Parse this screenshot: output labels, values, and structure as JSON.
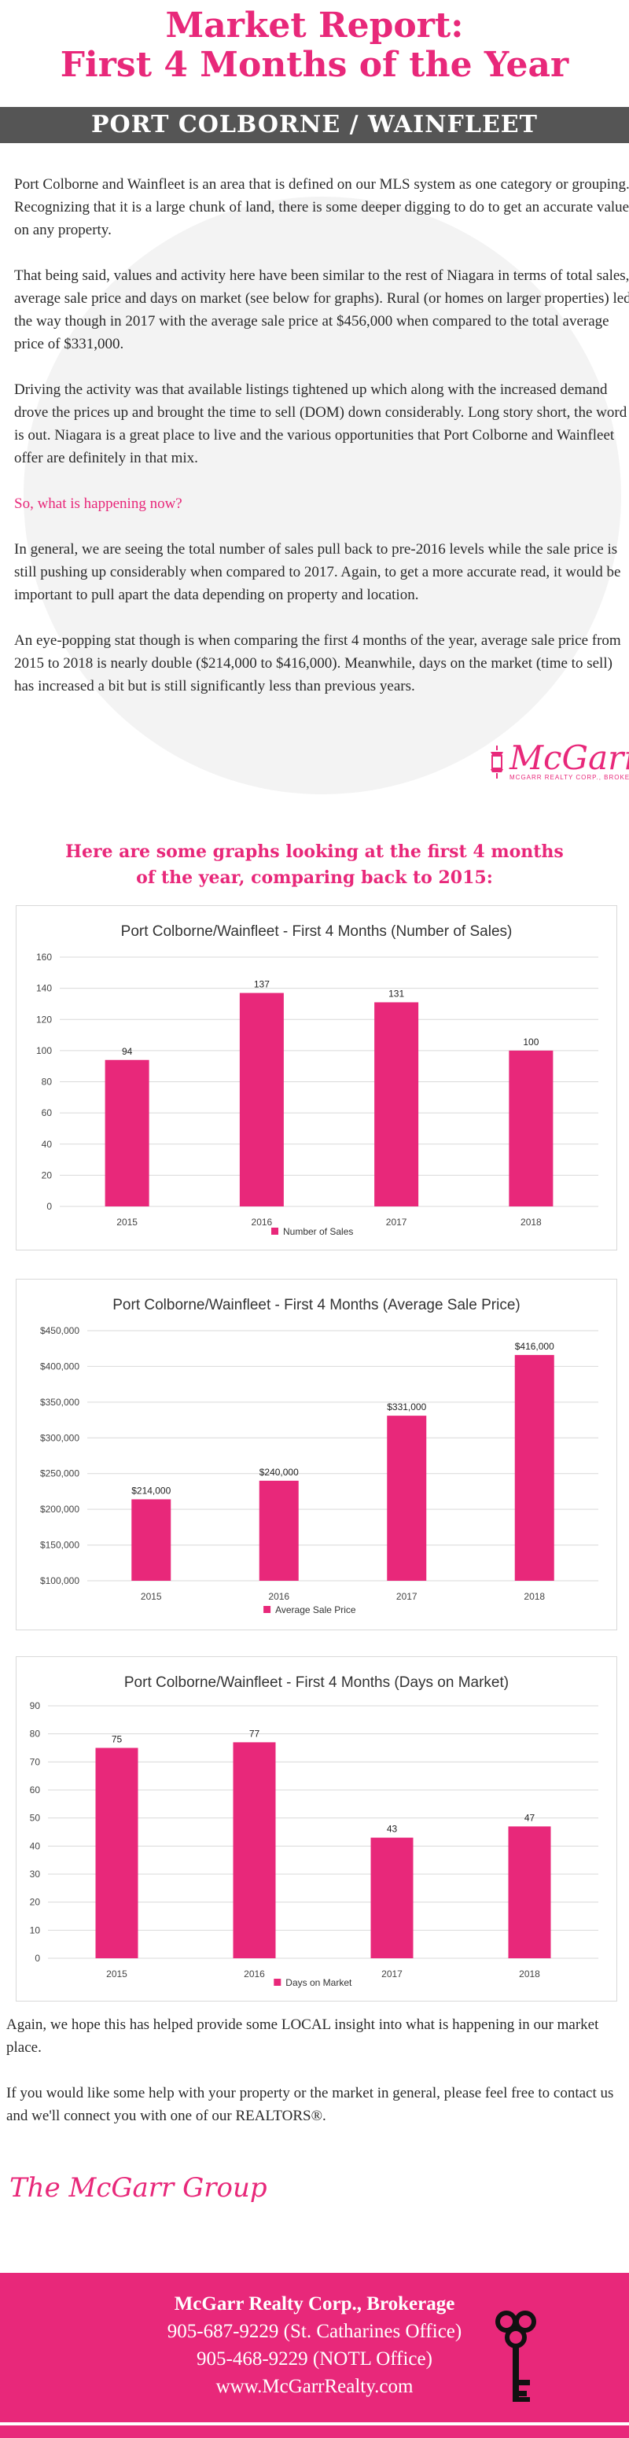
{
  "header": {
    "title_line1": "Market Report:",
    "title_line2": "First 4 Months of the Year",
    "region": "PORT COLBORNE / WAINFLEET"
  },
  "intro": {
    "p1": "Port Colborne and Wainfleet is an area that is defined on our MLS system as one category or grouping. Recognizing that it is a large chunk of land, there is some deeper digging to do to get an accurate value on any property.",
    "p2": "That being said, values and activity here have been similar to the rest of Niagara in terms of total sales, average sale price and days on market (see below for graphs). Rural (or homes on larger properties) led the way though in 2017 with the average sale price at $456,000 when compared to the total average price of $331,000.",
    "p3": "Driving the activity was that available listings tightened up which along with the increased demand drove the prices up and brought the time to sell (DOM) down considerably. Long story short, the word is out. Niagara is a great place to live and the various opportunities that Port Colborne and Wainfleet offer are definitely in that mix.",
    "question": "So, what is happening now?",
    "p4": "In general, we are seeing the total number of sales pull back to pre-2016 levels while the sale price is still pushing up considerably when compared to 2017. Again, to get a more accurate read, it would be important to pull apart the data depending on property and location.",
    "p5": "An eye-popping stat though is when comparing the first 4 months of the year, average sale price from 2015 to 2018 is nearly double ($214,000 to $416,000). Meanwhile, days on the market (time to sell) has increased a bit but is still significantly less than previous years."
  },
  "logo": {
    "name": "McGarr",
    "sub": "MCGARR REALTY CORP., BROKERAGE"
  },
  "graphs_heading": {
    "line1": "Here are some graphs looking at the first 4 months",
    "line2": "of the year, comparing back to 2015:"
  },
  "chart_data": [
    {
      "type": "bar",
      "title": "Port Colborne/Wainfleet - First 4 Months (Number of Sales)",
      "categories": [
        "2015",
        "2016",
        "2017",
        "2018"
      ],
      "series": [
        {
          "name": "Number of Sales",
          "values": [
            94,
            137,
            131,
            100
          ]
        }
      ],
      "data_labels": [
        "94",
        "137",
        "131",
        "100"
      ],
      "ylim": [
        0,
        160
      ],
      "yticks": [
        0,
        20,
        40,
        60,
        80,
        100,
        120,
        140,
        160
      ],
      "ytick_labels": [
        "0",
        "20",
        "40",
        "60",
        "80",
        "100",
        "120",
        "140",
        "160"
      ],
      "grid": true,
      "legend": "bottom",
      "color": "#e8287a"
    },
    {
      "type": "bar",
      "title": "Port Colborne/Wainfleet - First 4 Months (Average Sale Price)",
      "categories": [
        "2015",
        "2016",
        "2017",
        "2018"
      ],
      "series": [
        {
          "name": "Average Sale Price",
          "values": [
            214000,
            240000,
            331000,
            416000
          ]
        }
      ],
      "data_labels": [
        "$214,000",
        "$240,000",
        "$331,000",
        "$416,000"
      ],
      "ylim": [
        100000,
        450000
      ],
      "yticks": [
        100000,
        150000,
        200000,
        250000,
        300000,
        350000,
        400000,
        450000
      ],
      "ytick_labels": [
        "$100,000",
        "$150,000",
        "$200,000",
        "$250,000",
        "$300,000",
        "$350,000",
        "$400,000",
        "$450,000"
      ],
      "grid": true,
      "legend": "bottom",
      "color": "#e8287a"
    },
    {
      "type": "bar",
      "title": "Port Colborne/Wainfleet - First 4 Months (Days on Market)",
      "categories": [
        "2015",
        "2016",
        "2017",
        "2018"
      ],
      "series": [
        {
          "name": "Days on Market",
          "values": [
            75,
            77,
            43,
            47
          ]
        }
      ],
      "data_labels": [
        "75",
        "77",
        "43",
        "47"
      ],
      "ylim": [
        0,
        90
      ],
      "yticks": [
        0,
        10,
        20,
        30,
        40,
        50,
        60,
        70,
        80,
        90
      ],
      "ytick_labels": [
        "0",
        "10",
        "20",
        "30",
        "40",
        "50",
        "60",
        "70",
        "80",
        "90"
      ],
      "grid": true,
      "legend": "bottom",
      "color": "#e8287a"
    }
  ],
  "outro": {
    "p1": "Again, we hope this has helped provide some LOCAL insight into what is happening in our market place.",
    "p2": "If you would like some help with your property or the market in general, please feel free to contact us and we'll connect you with one of our REALTORS®."
  },
  "signature": "The McGarr Group",
  "footer": {
    "company": "McGarr Realty Corp., Brokerage",
    "phone1": "905-687-9229 (St. Catharines Office)",
    "phone2": "905-468-9229 (NOTL Office)",
    "website": "www.McGarrRealty.com"
  },
  "colors": {
    "accent": "#e8287a",
    "bar": "#555555",
    "text": "#2a2a2a"
  },
  "icons": [
    "lantern-icon",
    "key-icon"
  ]
}
